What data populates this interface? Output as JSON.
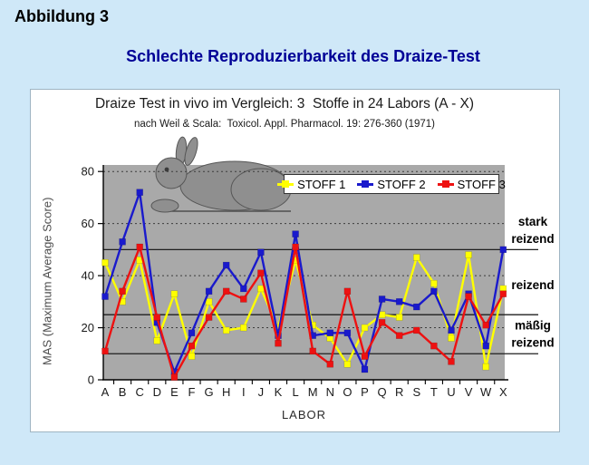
{
  "page": {
    "figure_label": "Abbildung 3",
    "heading": "Schlechte Reproduzierbarkeit des Draize-Test",
    "background_color": "#cfe8f8",
    "heading_color": "#000096"
  },
  "chart_data": {
    "type": "line",
    "title": "Draize Test in vivo im Vergleich: 3  Stoffe in 24 Labors (A - X)",
    "subtitle": "nach Weil & Scala:  Toxicol. Appl. Pharmacol. 19: 276-360 (1971)",
    "xlabel": "LABOR",
    "ylabel": "MAS (Maximum Average Score)",
    "ylim": [
      0,
      83
    ],
    "yticks": [
      0,
      20,
      40,
      60,
      80
    ],
    "grid": "dotted horizontal at yticks",
    "legend_position": "top-center-inside",
    "plot_bg_color": "#a9a9a9",
    "categories": [
      "A",
      "B",
      "C",
      "D",
      "E",
      "F",
      "G",
      "H",
      "I",
      "J",
      "K",
      "L",
      "M",
      "N",
      "O",
      "P",
      "Q",
      "R",
      "S",
      "T",
      "U",
      "V",
      "W",
      "X"
    ],
    "series": [
      {
        "name": "STOFF 1",
        "color": "#ffff00",
        "values": [
          45,
          30,
          46,
          15,
          33,
          9,
          30,
          19,
          20,
          35,
          20,
          46,
          21,
          16,
          6,
          20,
          25,
          24,
          47,
          37,
          16,
          48,
          5,
          35
        ]
      },
      {
        "name": "STOFF 2",
        "color": "#1a1acc",
        "values": [
          32,
          53,
          72,
          22,
          3,
          18,
          34,
          44,
          35,
          49,
          17,
          56,
          17,
          18,
          18,
          4,
          31,
          30,
          28,
          34,
          19,
          33,
          13,
          50
        ]
      },
      {
        "name": "STOFF 3",
        "color": "#ee1111",
        "values": [
          11,
          34,
          51,
          24,
          1,
          13,
          24,
          34,
          31,
          41,
          14,
          51,
          11,
          6,
          34,
          9,
          22,
          17,
          19,
          13,
          7,
          32,
          21,
          33
        ]
      }
    ],
    "thresholds": [
      {
        "value": 50,
        "label_lines": [
          "stark",
          "reizend"
        ],
        "label_center_value": 57.5
      },
      {
        "value": 25,
        "label_lines": [
          "reizend"
        ],
        "label_center_value": 36.5
      },
      {
        "value": 10,
        "label_lines": [
          "mäßig",
          "reizend"
        ],
        "label_center_value": 17.5
      }
    ]
  }
}
